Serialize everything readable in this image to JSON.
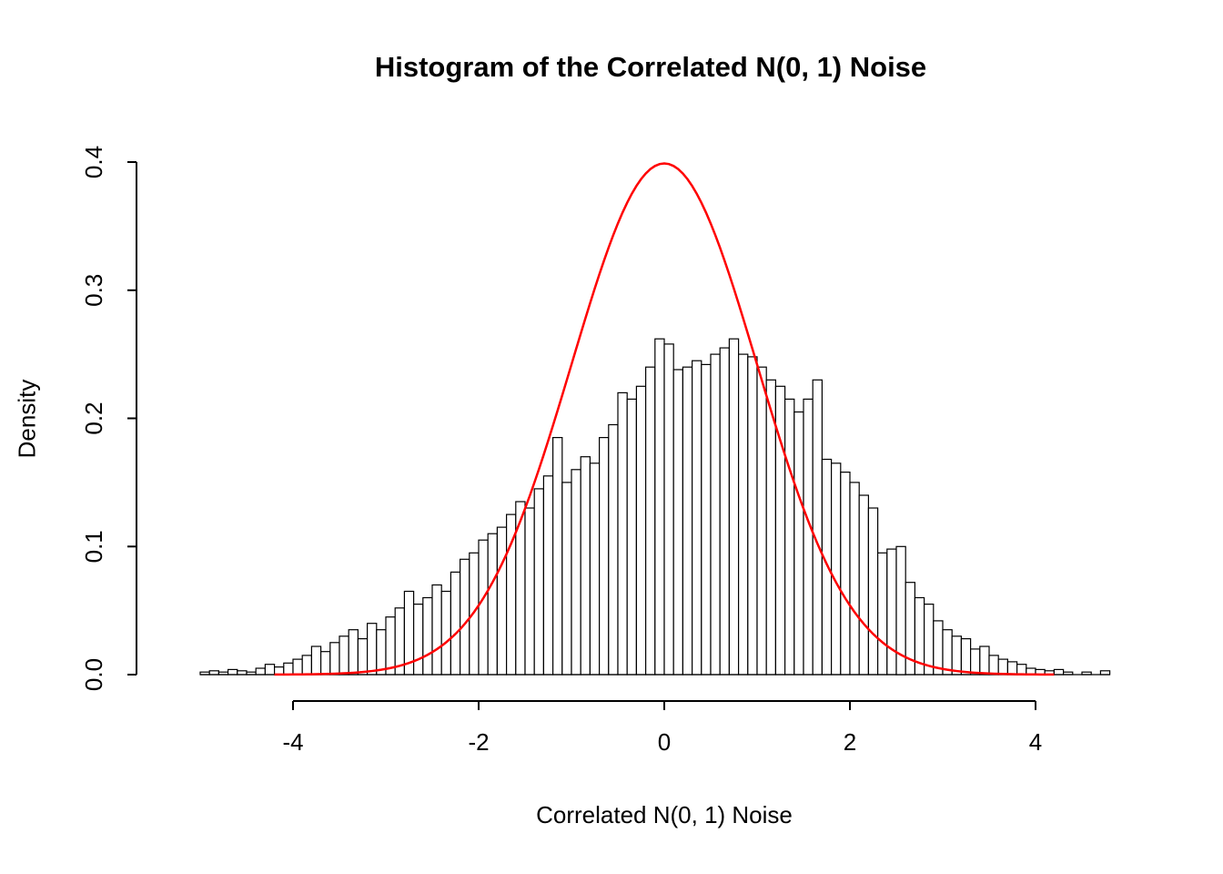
{
  "chart_data": {
    "type": "bar",
    "subtype": "histogram-with-density-overlay",
    "title": "Histogram of the Correlated N(0, 1) Noise",
    "xlabel": "Correlated N(0, 1) Noise",
    "ylabel": "Density",
    "xlim": [
      -5.2,
      5.0
    ],
    "ylim": [
      0,
      0.4
    ],
    "grid": false,
    "x_tick_values": [
      -4,
      -2,
      0,
      2,
      4
    ],
    "x_tick_labels": [
      "-4",
      "-2",
      "0",
      "2",
      "4"
    ],
    "y_tick_values": [
      0.0,
      0.1,
      0.2,
      0.3,
      0.4
    ],
    "y_tick_labels": [
      "0.0",
      "0.1",
      "0.2",
      "0.3",
      "0.4"
    ],
    "colors": {
      "bar_fill": "#FFFFFF",
      "bar_stroke": "#000000",
      "axis": "#000000",
      "curve": "#FF0000"
    },
    "histogram": {
      "bin_start": -5.0,
      "bin_width": 0.1,
      "densities": [
        0.002,
        0.003,
        0.002,
        0.004,
        0.003,
        0.002,
        0.005,
        0.008,
        0.006,
        0.009,
        0.012,
        0.015,
        0.022,
        0.018,
        0.025,
        0.03,
        0.035,
        0.028,
        0.04,
        0.035,
        0.045,
        0.052,
        0.065,
        0.055,
        0.06,
        0.07,
        0.065,
        0.08,
        0.09,
        0.095,
        0.105,
        0.11,
        0.115,
        0.125,
        0.135,
        0.13,
        0.145,
        0.155,
        0.185,
        0.15,
        0.16,
        0.17,
        0.165,
        0.185,
        0.195,
        0.22,
        0.215,
        0.225,
        0.24,
        0.262,
        0.258,
        0.238,
        0.24,
        0.245,
        0.242,
        0.25,
        0.255,
        0.262,
        0.25,
        0.248,
        0.24,
        0.23,
        0.225,
        0.215,
        0.205,
        0.215,
        0.23,
        0.168,
        0.165,
        0.158,
        0.15,
        0.14,
        0.13,
        0.095,
        0.098,
        0.1,
        0.072,
        0.06,
        0.055,
        0.042,
        0.035,
        0.03,
        0.028,
        0.02,
        0.022,
        0.015,
        0.012,
        0.01,
        0.008,
        0.005,
        0.004,
        0.003,
        0.004,
        0.002,
        0.0,
        0.002,
        0.0,
        0.003
      ]
    },
    "overlay_curve": {
      "name": "standard-normal-density",
      "distribution": "normal",
      "mean": 0,
      "sd": 1,
      "peak_density": 0.3989,
      "x_range": [
        -4.2,
        4.2
      ],
      "color": "#FF0000"
    }
  }
}
